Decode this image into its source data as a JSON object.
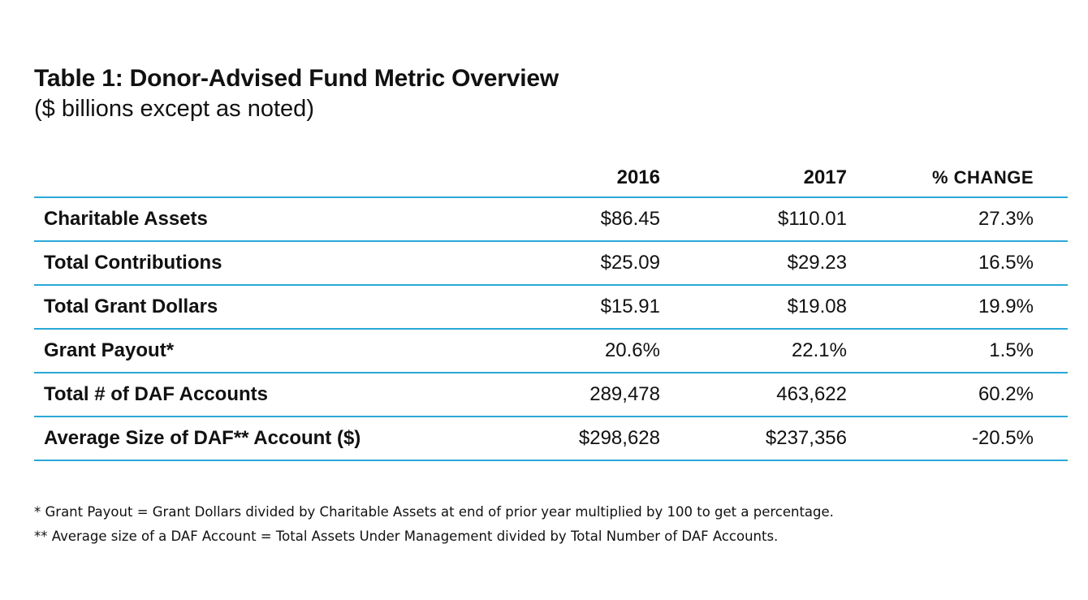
{
  "title": "Table 1: Donor-Advised Fund Metric Overview",
  "subtitle": "($ billions except as noted)",
  "table": {
    "headers": [
      "",
      "2016",
      "2017",
      "% CHANGE"
    ],
    "rows": [
      {
        "label": "Charitable Assets",
        "y2016": "$86.45",
        "y2017": "$110.01",
        "change": "27.3%"
      },
      {
        "label": "Total Contributions",
        "y2016": "$25.09",
        "y2017": "$29.23",
        "change": "16.5%"
      },
      {
        "label": "Total Grant Dollars",
        "y2016": "$15.91",
        "y2017": "$19.08",
        "change": "19.9%"
      },
      {
        "label": "Grant Payout*",
        "y2016": "20.6%",
        "y2017": "22.1%",
        "change": "1.5%"
      },
      {
        "label": "Total # of DAF Accounts",
        "y2016": "289,478",
        "y2017": "463,622",
        "change": "60.2%"
      },
      {
        "label": "Average Size of DAF** Account ($)",
        "y2016": "$298,628",
        "y2017": "$237,356",
        "change": "-20.5%"
      }
    ]
  },
  "footnotes": [
    "* Grant Payout = Grant Dollars divided by Charitable Assets at end of prior year multiplied by 100 to get a percentage.",
    "** Average size of a DAF Account = Total Assets Under Management divided by Total Number of DAF Accounts."
  ],
  "colors": {
    "rule": "#2aa8d8",
    "text": "#111111"
  }
}
